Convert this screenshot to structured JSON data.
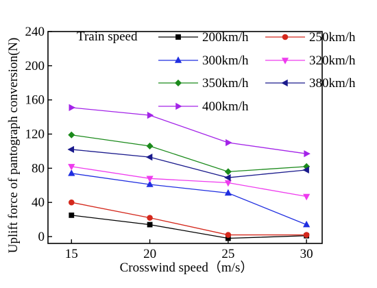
{
  "chart_data": {
    "type": "line",
    "title": "",
    "xlabel": "Crosswind speed（m/s）",
    "ylabel": "Uplift force of pantograph conversion(N)",
    "legend_title": "Train speed",
    "legend_position": "top-right",
    "x": [
      15,
      20,
      25,
      30
    ],
    "xlim": [
      13.5,
      31
    ],
    "ylim": [
      -8,
      240
    ],
    "xticks": [
      15,
      20,
      25,
      30
    ],
    "yticks": [
      0,
      40,
      80,
      120,
      160,
      200,
      240
    ],
    "grid": false,
    "series": [
      {
        "name": "200km/h",
        "values": [
          25,
          14,
          -2,
          1
        ],
        "color": "#000000",
        "marker": "square"
      },
      {
        "name": "250km/h",
        "values": [
          40,
          22,
          2,
          2
        ],
        "color": "#d4281c",
        "marker": "circle"
      },
      {
        "name": "300km/h",
        "values": [
          74,
          61,
          51,
          14
        ],
        "color": "#1f2ee0",
        "marker": "triangle-up"
      },
      {
        "name": "320km/h",
        "values": [
          82,
          68,
          63,
          47
        ],
        "color": "#ee3bee",
        "marker": "triangle-down"
      },
      {
        "name": "350km/h",
        "values": [
          119,
          106,
          76,
          82
        ],
        "color": "#1b8a1b",
        "marker": "diamond"
      },
      {
        "name": "380km/h",
        "values": [
          102,
          93,
          69,
          78
        ],
        "color": "#1a1a8c",
        "marker": "triangle-left"
      },
      {
        "name": "400km/h",
        "values": [
          151,
          142,
          110,
          97
        ],
        "color": "#a323e8",
        "marker": "triangle-right"
      }
    ]
  }
}
